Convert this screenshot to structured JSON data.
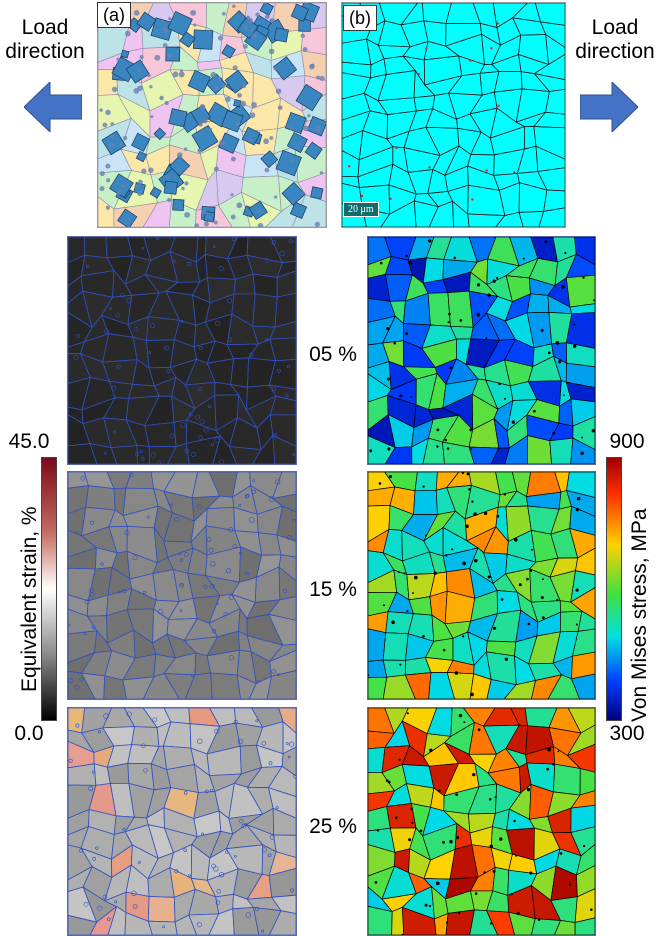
{
  "header": {
    "load_left": "Load\ndirection",
    "load_right": "Load\ndirection",
    "panel_a_label": "(a)",
    "panel_b_label": "(b)",
    "scale_bar": "20 μm"
  },
  "rows": [
    {
      "strain_level": "05 %"
    },
    {
      "strain_level": "15 %"
    },
    {
      "strain_level": "25 %"
    }
  ],
  "colorbar_left": {
    "label": "Equivalent strain, %",
    "max": "45.0",
    "min": "0.0",
    "colors": [
      "#7a0a1a",
      "#c46a5e",
      "#ffffff",
      "#8a8a8a",
      "#000000"
    ]
  },
  "colorbar_right": {
    "label": "Von Mises stress, MPa",
    "max": "900",
    "min": "300",
    "colors": [
      "#a00000",
      "#ff3000",
      "#ffd000",
      "#40e040",
      "#00e0e0",
      "#0040ff",
      "#000080"
    ]
  },
  "colors": {
    "arrow": "#4472c4",
    "grain_boundary_strain": "#3050c0",
    "grain_boundary_stress": "#000000",
    "ebsd_background": "#00ffff"
  }
}
